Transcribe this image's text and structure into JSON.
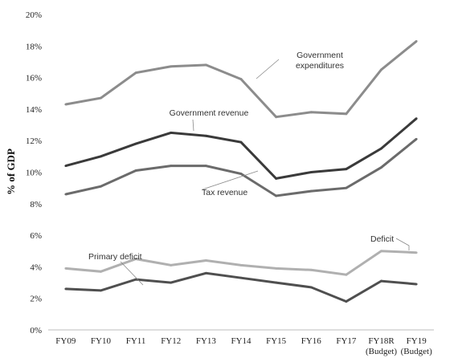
{
  "chart_data": {
    "type": "line",
    "title": "",
    "xlabel": "",
    "ylabel": "% of GDP",
    "ylim": [
      0,
      20
    ],
    "y_ticks": [
      "0%",
      "2%",
      "4%",
      "6%",
      "8%",
      "10%",
      "12%",
      "14%",
      "16%",
      "18%",
      "20%"
    ],
    "categories": [
      "FY09",
      "FY10",
      "FY11",
      "FY12",
      "FY13",
      "FY14",
      "FY15",
      "FY16",
      "FY17",
      "FY18R",
      "FY19"
    ],
    "category_sublabels": [
      "",
      "",
      "",
      "",
      "",
      "",
      "",
      "",
      "",
      "(Budget)",
      "(Budget)"
    ],
    "grid": false,
    "legend": "none (direct annotations)",
    "series": [
      {
        "name": "Government expenditures",
        "color": "#8c8c8c",
        "values": [
          14.3,
          14.7,
          16.3,
          16.7,
          16.8,
          15.9,
          13.5,
          13.8,
          13.7,
          16.5,
          18.3
        ]
      },
      {
        "name": "Government revenue",
        "color": "#3a3a3a",
        "values": [
          10.4,
          11.0,
          11.8,
          12.5,
          12.3,
          11.9,
          9.6,
          10.0,
          10.2,
          11.5,
          13.4
        ]
      },
      {
        "name": "Tax revenue",
        "color": "#6b6b6b",
        "values": [
          8.6,
          9.1,
          10.1,
          10.4,
          10.4,
          9.9,
          8.5,
          8.8,
          9.0,
          10.3,
          12.1
        ]
      },
      {
        "name": "Deficit",
        "color": "#b0b0b0",
        "values": [
          3.9,
          3.7,
          4.5,
          4.1,
          4.4,
          4.1,
          3.9,
          3.8,
          3.5,
          5.0,
          4.9
        ]
      },
      {
        "name": "Primary deficit",
        "color": "#4f4f4f",
        "values": [
          2.6,
          2.5,
          3.2,
          3.0,
          3.6,
          3.3,
          3.0,
          2.7,
          1.8,
          3.1,
          2.9
        ]
      }
    ],
    "annotations": [
      {
        "series": 0,
        "lines": [
          "Government",
          "expenditures"
        ]
      },
      {
        "series": 1,
        "lines": [
          "Government revenue"
        ]
      },
      {
        "series": 2,
        "lines": [
          "Tax revenue"
        ]
      },
      {
        "series": 3,
        "lines": [
          "Deficit"
        ]
      },
      {
        "series": 4,
        "lines": [
          "Primary deficit"
        ]
      }
    ]
  }
}
